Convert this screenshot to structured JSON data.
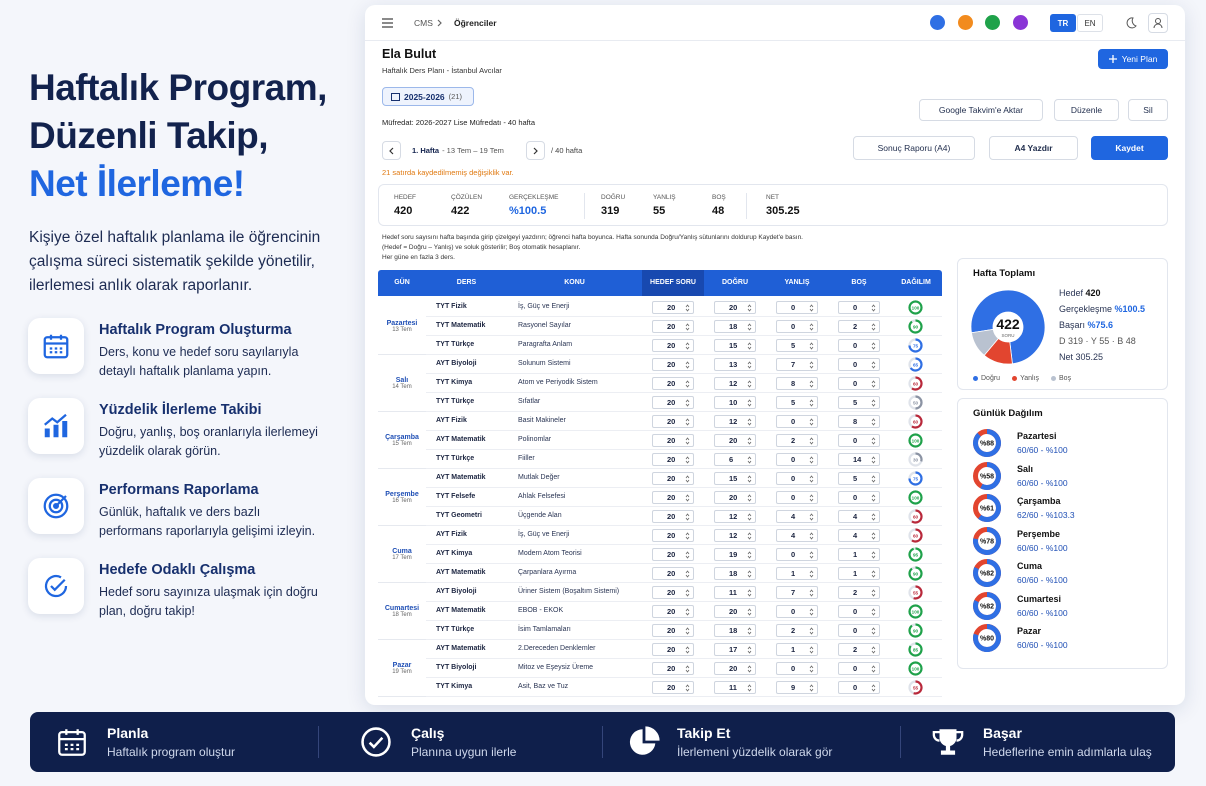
{
  "hero": {
    "title_lines": [
      "Haftalık Program,",
      "Düzenli Takip,"
    ],
    "title_accent": "Net İlerleme!",
    "description": "Kişiye özel haftalık planlama ile öğrencinin çalışma süreci sistematik şekilde yönetilir, ilerlemesi anlık olarak raporlanır."
  },
  "features": [
    {
      "title": "Haftalık Program Oluşturma",
      "text": "Ders, konu ve hedef soru sayılarıyla detaylı haftalık planlama yapın."
    },
    {
      "title": "Yüzdelik İlerleme Takibi",
      "text": "Doğru, yanlış, boş oranlarıyla ilerlemeyi yüzdelik olarak görün."
    },
    {
      "title": "Performans Raporlama",
      "text": "Günlük, haftalık ve ders bazlı performans raporlarıyla gelişimi izleyin."
    },
    {
      "title": "Hedefe Odaklı Çalışma",
      "text": "Hedef soru sayınıza ulaşmak için doğru plan, doğru takip!"
    }
  ],
  "app": {
    "breadcrumb": [
      "CMS",
      "Öğrenciler"
    ],
    "theme_colors": [
      "#2f6fe4",
      "#f28b1e",
      "#1fa24a",
      "#8a35d6"
    ],
    "languages": [
      "TR",
      "EN"
    ],
    "student": "Ela Bulut",
    "plan_subtitle": "Haftalık Ders Planı - İstanbul Avcılar",
    "new_plan": "Yeni Plan",
    "year": "2025-2026",
    "year_count": "(21)",
    "actions": [
      "Google Takvim'e Aktar",
      "Düzenle",
      "Sil"
    ],
    "curriculum": "Müfredat: 2026-2027 Lise Müfredatı - 40 hafta",
    "week": "1. Hafta",
    "week_range": "- 13 Tem – 19 Tem",
    "week_total": "/ 40 hafta",
    "report": "Sonuç Raporu (A4)",
    "print": "A4 Yazdır",
    "save": "Kaydet",
    "warning": "21 satırda kaydedilmemiş değişiklik var.",
    "stats": [
      {
        "label": "HEDEF",
        "value": 420
      },
      {
        "label": "ÇÖZÜLEN",
        "value": 422
      },
      {
        "label": "GERÇEKLEŞME",
        "value": "%100.5"
      },
      {
        "label": "DOĞRU",
        "value": 319
      },
      {
        "label": "YANLIŞ",
        "value": 55
      },
      {
        "label": "BOŞ",
        "value": 48
      },
      {
        "label": "NET",
        "value": 305.25
      }
    ],
    "info": [
      "Hedef soru sayısını hafta başında girip çizelgeyi yazdırın; öğrenci hafta boyunca. Hafta sonunda Doğru/Yanlış sütunlarını doldurup Kaydet'e basın.",
      "(Hedef = Doğru – Yanlış) ve soluk gösterilir; Boş otomatik hesaplanır.",
      "Her güne en fazla 3 ders."
    ],
    "columns": [
      "GÜN",
      "DERS",
      "KONU",
      "HEDEF SORU",
      "DOĞRU",
      "YANLIŞ",
      "BOŞ",
      "DAĞILIM"
    ],
    "days": [
      {
        "name": "Pazartesi",
        "date": "13 Tem",
        "rows": [
          {
            "lesson": "TYT Fizik",
            "topic": "İş, Güç ve Enerji",
            "target": 20,
            "correct": 20,
            "wrong": 0,
            "empty": 0,
            "score": 100
          },
          {
            "lesson": "TYT Matematik",
            "topic": "Rasyonel Sayılar",
            "target": 20,
            "correct": 18,
            "wrong": 0,
            "empty": 2,
            "score": 90
          },
          {
            "lesson": "TYT Türkçe",
            "topic": "Paragrafta Anlam",
            "target": 20,
            "correct": 15,
            "wrong": 5,
            "empty": 0,
            "score": 75
          }
        ]
      },
      {
        "name": "Salı",
        "date": "14 Tem",
        "rows": [
          {
            "lesson": "AYT Biyoloji",
            "topic": "Solunum Sistemi",
            "target": 20,
            "correct": 13,
            "wrong": 7,
            "empty": 0,
            "score": 65
          },
          {
            "lesson": "TYT Kimya",
            "topic": "Atom ve Periyodik Sistem",
            "target": 20,
            "correct": 12,
            "wrong": 8,
            "empty": 0,
            "score": 60
          },
          {
            "lesson": "TYT Türkçe",
            "topic": "Sıfatlar",
            "target": 20,
            "correct": 10,
            "wrong": 5,
            "empty": 5,
            "score": 50
          }
        ]
      },
      {
        "name": "Çarşamba",
        "date": "15 Tem",
        "rows": [
          {
            "lesson": "AYT Fizik",
            "topic": "Basit Makineler",
            "target": 20,
            "correct": 12,
            "wrong": 0,
            "empty": 8,
            "score": 60
          },
          {
            "lesson": "AYT Matematik",
            "topic": "Polinomlar",
            "target": 20,
            "correct": 20,
            "wrong": 2,
            "empty": 0,
            "score": 100
          },
          {
            "lesson": "TYT Türkçe",
            "topic": "Fiiller",
            "target": 20,
            "correct": 6,
            "wrong": 0,
            "empty": 14,
            "score": 30
          }
        ]
      },
      {
        "name": "Perşembe",
        "date": "16 Tem",
        "rows": [
          {
            "lesson": "AYT Matematik",
            "topic": "Mutlak Değer",
            "target": 20,
            "correct": 15,
            "wrong": 0,
            "empty": 5,
            "score": 75
          },
          {
            "lesson": "TYT Felsefe",
            "topic": "Ahlak Felsefesi",
            "target": 20,
            "correct": 20,
            "wrong": 0,
            "empty": 0,
            "score": 100
          },
          {
            "lesson": "TYT Geometri",
            "topic": "Üçgende Alan",
            "target": 20,
            "correct": 12,
            "wrong": 4,
            "empty": 4,
            "score": 60
          }
        ]
      },
      {
        "name": "Cuma",
        "date": "17 Tem",
        "rows": [
          {
            "lesson": "AYT Fizik",
            "topic": "İş, Güç ve Enerji",
            "target": 20,
            "correct": 12,
            "wrong": 4,
            "empty": 4,
            "score": 60
          },
          {
            "lesson": "AYT Kimya",
            "topic": "Modern Atom Teorisi",
            "target": 20,
            "correct": 19,
            "wrong": 0,
            "empty": 1,
            "score": 95
          },
          {
            "lesson": "AYT Matematik",
            "topic": "Çarpanlara Ayırma",
            "target": 20,
            "correct": 18,
            "wrong": 1,
            "empty": 1,
            "score": 90
          }
        ]
      },
      {
        "name": "Cumartesi",
        "date": "18 Tem",
        "rows": [
          {
            "lesson": "AYT Biyoloji",
            "topic": "Üriner Sistem (Boşaltım Sistemi)",
            "target": 20,
            "correct": 11,
            "wrong": 7,
            "empty": 2,
            "score": 55
          },
          {
            "lesson": "AYT Matematik",
            "topic": "EBOB - EKOK",
            "target": 20,
            "correct": 20,
            "wrong": 0,
            "empty": 0,
            "score": 100
          },
          {
            "lesson": "TYT Türkçe",
            "topic": "İsim Tamlamaları",
            "target": 20,
            "correct": 18,
            "wrong": 2,
            "empty": 0,
            "score": 90
          }
        ]
      },
      {
        "name": "Pazar",
        "date": "19 Tem",
        "rows": [
          {
            "lesson": "AYT Matematik",
            "topic": "2.Dereceden Denklemler",
            "target": 20,
            "correct": 17,
            "wrong": 1,
            "empty": 2,
            "score": 85
          },
          {
            "lesson": "TYT Biyoloji",
            "topic": "Mitoz ve Eşeysiz Üreme",
            "target": 20,
            "correct": 20,
            "wrong": 0,
            "empty": 0,
            "score": 100
          },
          {
            "lesson": "TYT Kimya",
            "topic": "Asit, Baz ve Tuz",
            "target": 20,
            "correct": 11,
            "wrong": 9,
            "empty": 0,
            "score": 55
          }
        ]
      }
    ],
    "summary": {
      "title": "Hafta Toplamı",
      "total": 422,
      "unit": "SORU",
      "lines": [
        {
          "label": "Hedef",
          "value": "420"
        },
        {
          "label": "Gerçekleşme",
          "value": "%100.5"
        },
        {
          "label": "Başarı",
          "value": "%75.6"
        }
      ],
      "breakdown": "D 319 · Y 55 · B 48",
      "net": {
        "label": "Net",
        "value": "305.25"
      },
      "legend": [
        "Doğru",
        "Yanlış",
        "Boş"
      ],
      "colors": [
        "#2f6fe4",
        "#e2452f",
        "#b9c2d0"
      ]
    },
    "daily": {
      "title": "Günlük Dağılım",
      "items": [
        {
          "name": "Pazartesi",
          "pct": {
            "value": 88,
            "label": "%88"
          },
          "detail": "60/60 - %100"
        },
        {
          "name": "Salı",
          "pct": {
            "value": 58,
            "label": "%58"
          },
          "detail": "60/60 - %100"
        },
        {
          "name": "Çarşamba",
          "pct": {
            "value": 61,
            "label": "%61"
          },
          "detail": "62/60 - %103.3"
        },
        {
          "name": "Perşembe",
          "pct": {
            "value": 78,
            "label": "%78"
          },
          "detail": "60/60 - %100"
        },
        {
          "name": "Cuma",
          "pct": {
            "value": 82,
            "label": "%82"
          },
          "detail": "60/60 - %100"
        },
        {
          "name": "Cumartesi",
          "pct": {
            "value": 82,
            "label": "%82"
          },
          "detail": "60/60 - %100"
        },
        {
          "name": "Pazar",
          "pct": {
            "value": 80,
            "label": "%80"
          },
          "detail": "60/60 - %100"
        }
      ]
    }
  },
  "footer": [
    {
      "title": "Planla",
      "text": "Haftalık program oluştur"
    },
    {
      "title": "Çalış",
      "text": "Planına uygun ilerle"
    },
    {
      "title": "Takip Et",
      "text": "İlerlemeni yüzdelik olarak gör"
    },
    {
      "title": "Başar",
      "text": "Hedeflerine emin adımlarla ulaş"
    }
  ]
}
